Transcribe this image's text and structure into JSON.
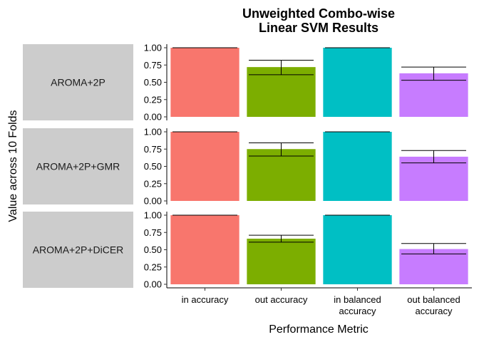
{
  "chart_data": {
    "type": "bar",
    "title_lines": [
      "Unweighted Combo-wise",
      "Linear SVM Results"
    ],
    "xlabel": "Performance Metric",
    "ylabel": "Value across 10 Folds",
    "categories": [
      [
        "in accuracy"
      ],
      [
        "out accuracy"
      ],
      [
        "in balanced",
        "accuracy"
      ],
      [
        "out balanced",
        "accuracy"
      ]
    ],
    "colors": [
      "#F8766D",
      "#7CAE00",
      "#00BFC4",
      "#C77CFF"
    ],
    "ylim": [
      0,
      1
    ],
    "yticks": [
      "0.00",
      "0.25",
      "0.50",
      "0.75",
      "1.00"
    ],
    "panels": [
      {
        "label": "AROMA+2P",
        "values": [
          1.0,
          0.72,
          1.0,
          0.63
        ],
        "errors": [
          [
            1.0,
            1.0
          ],
          [
            0.61,
            0.82
          ],
          [
            1.0,
            1.0
          ],
          [
            0.53,
            0.72
          ]
        ]
      },
      {
        "label": "AROMA+2P+GMR",
        "values": [
          1.0,
          0.75,
          1.0,
          0.64
        ],
        "errors": [
          [
            1.0,
            1.0
          ],
          [
            0.65,
            0.84
          ],
          [
            1.0,
            1.0
          ],
          [
            0.55,
            0.73
          ]
        ]
      },
      {
        "label": "AROMA+2P+DiCER",
        "values": [
          1.0,
          0.66,
          1.0,
          0.51
        ],
        "errors": [
          [
            1.0,
            1.0
          ],
          [
            0.61,
            0.71
          ],
          [
            1.0,
            1.0
          ],
          [
            0.44,
            0.59
          ]
        ]
      }
    ]
  }
}
